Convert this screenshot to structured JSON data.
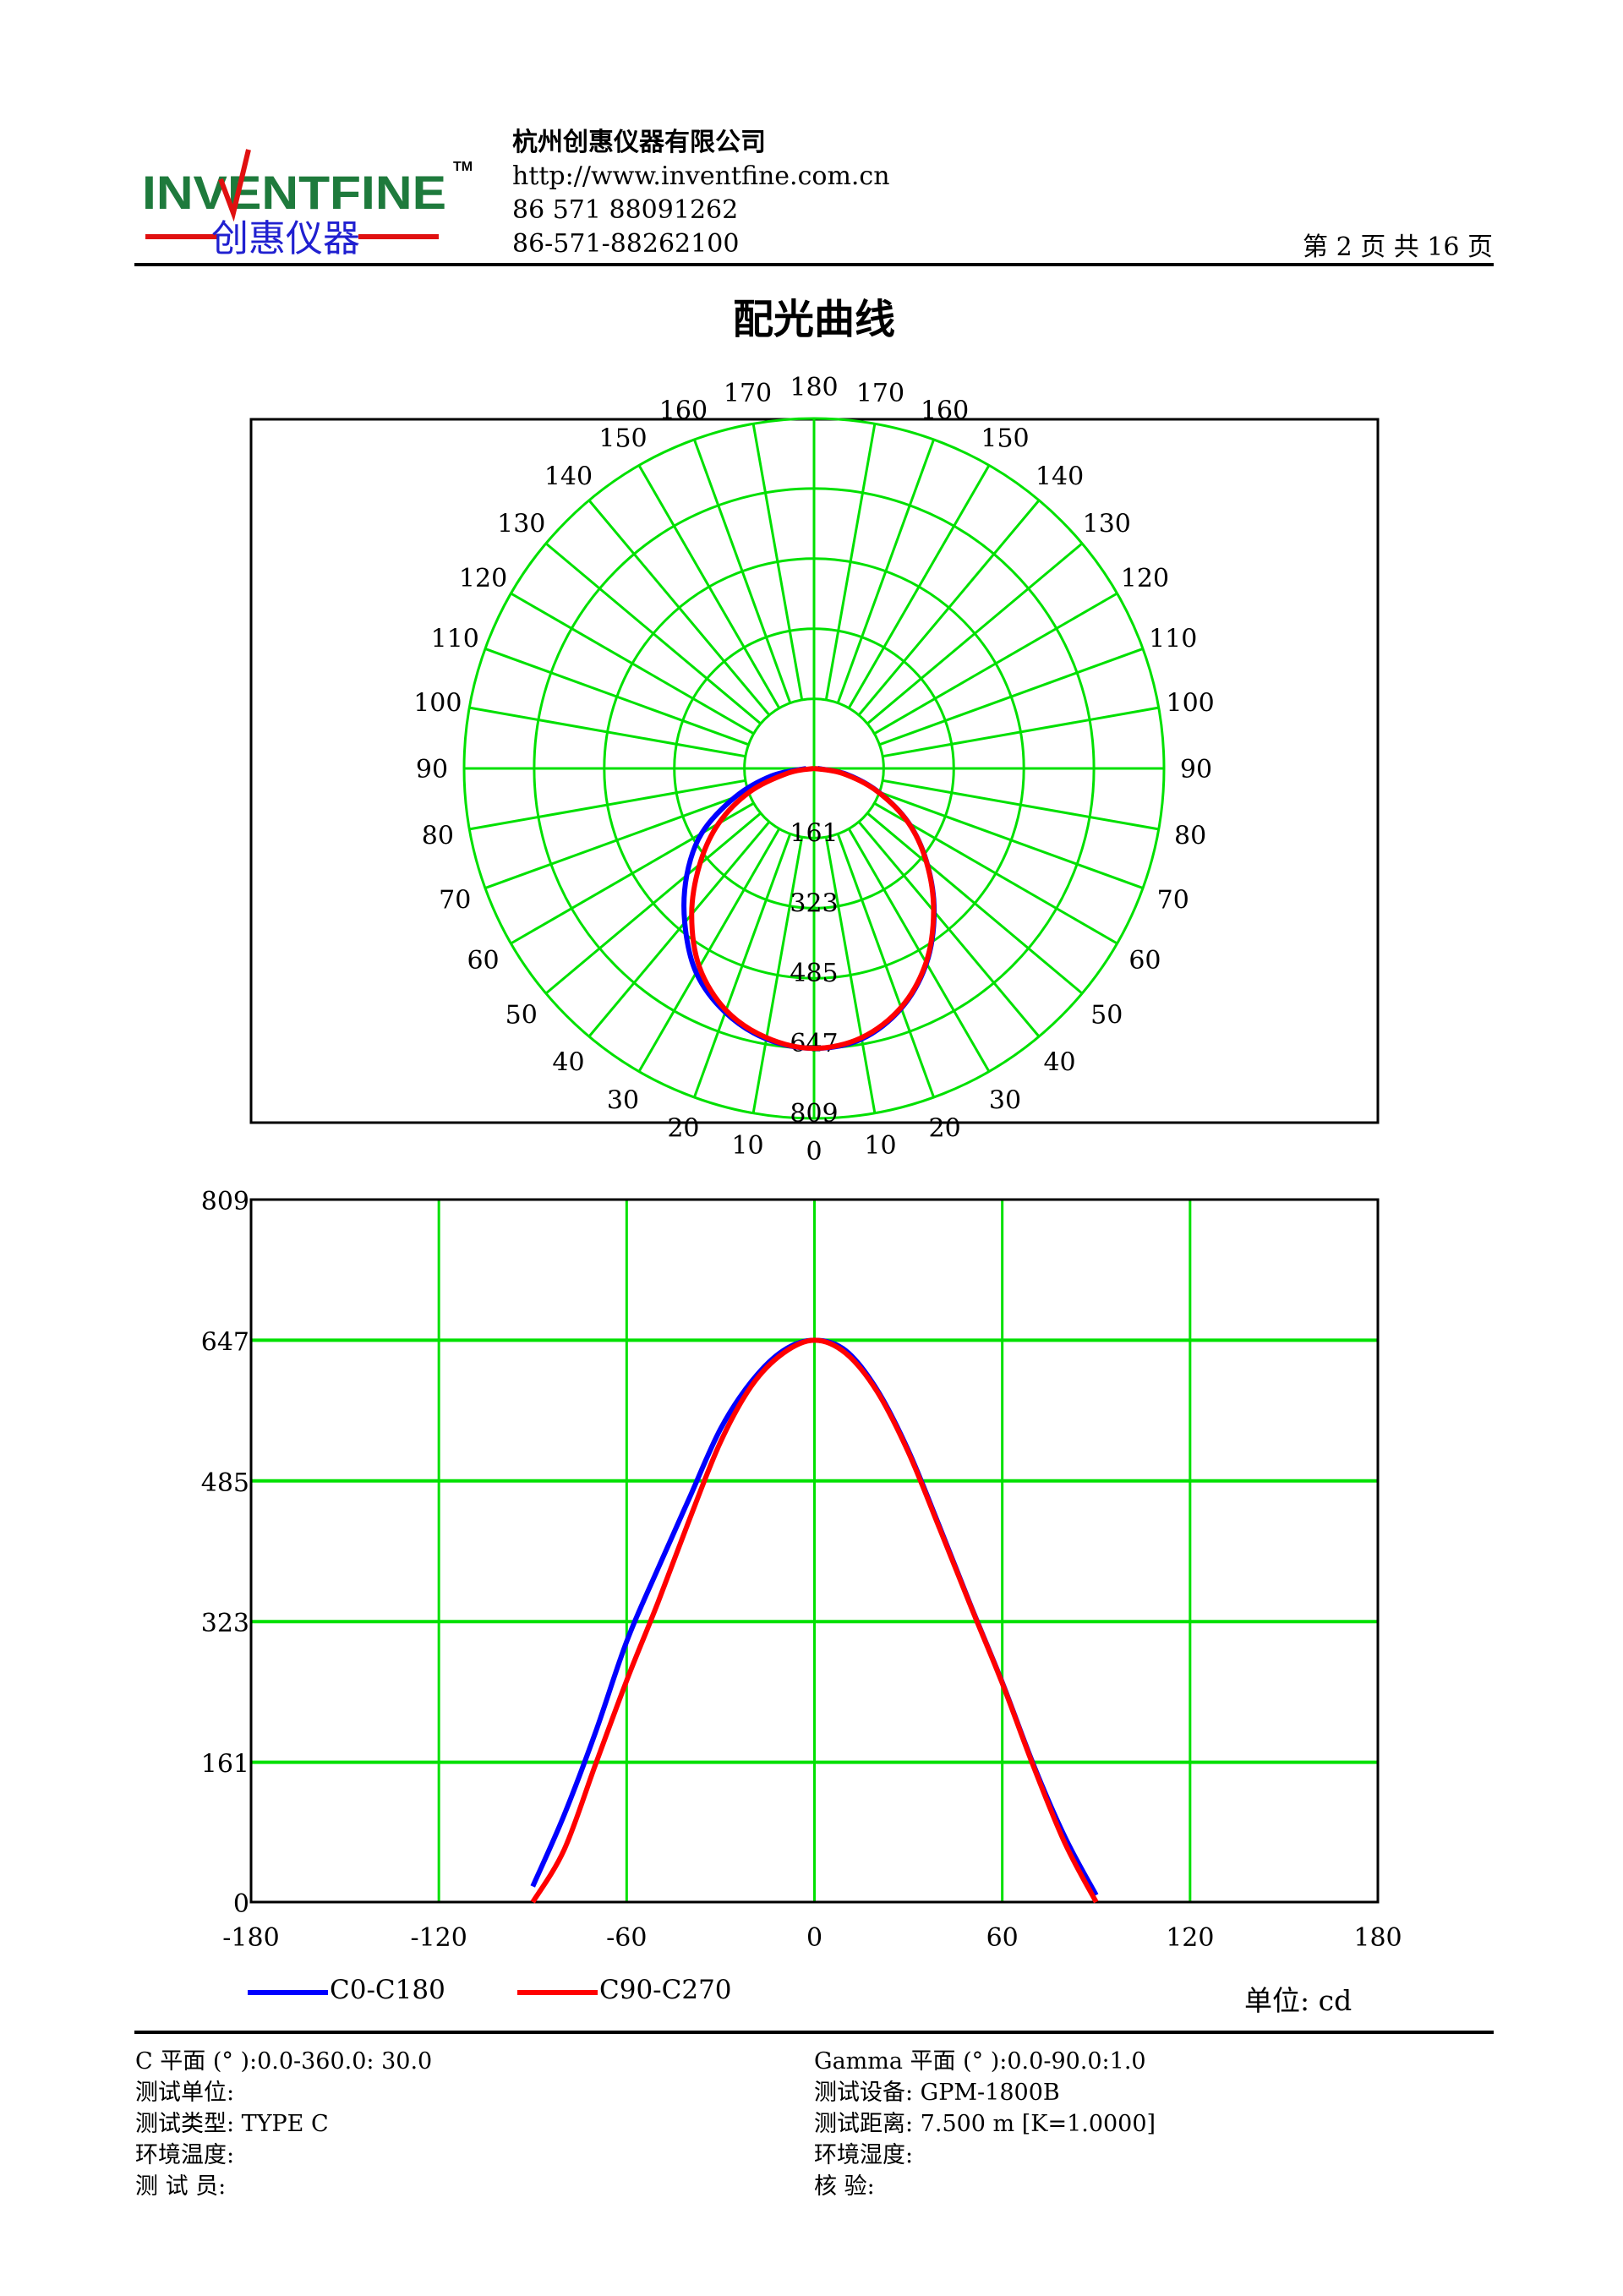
{
  "header": {
    "logo_text": "INVENTFINE",
    "logo_tm": "TM",
    "logo_cn": "创惠仪器",
    "company": "杭州创惠仪器有限公司",
    "website": "http://www.inventfine.com.cn",
    "phone1": "86 571 88091262",
    "phone2": "86-571-88262100",
    "page_info": "第 2 页  共 16 页"
  },
  "title": "配光曲线",
  "colors": {
    "grid": "#00e000",
    "c0_c180": "#0000ff",
    "c90_c270": "#ff0000",
    "logo_green": "#1e7a3c",
    "logo_red": "#e01010",
    "logo_blue": "#2020d0"
  },
  "chart_data": [
    {
      "type": "polar",
      "radial_ticks": [
        "161",
        "323",
        "485",
        "647",
        "809"
      ],
      "radial_max": 809,
      "angle_ticks": [
        0,
        10,
        20,
        30,
        40,
        50,
        60,
        70,
        80,
        90,
        100,
        110,
        120,
        130,
        140,
        150,
        160,
        170,
        180
      ],
      "grid": true,
      "series": [
        {
          "name": "C0-C180",
          "angles": [
            -90,
            -80,
            -70,
            -60,
            -50,
            -40,
            -30,
            -20,
            -10,
            0,
            10,
            20,
            30,
            40,
            50,
            60,
            70,
            80,
            90
          ],
          "values": [
            18,
            100,
            195,
            300,
            384,
            465,
            545,
            600,
            635,
            647,
            635,
            590,
            520,
            432,
            341,
            253,
            158,
            75,
            8
          ]
        },
        {
          "name": "C90-C270",
          "angles": [
            -90,
            -80,
            -70,
            -60,
            -50,
            -40,
            -30,
            -20,
            -10,
            0,
            10,
            20,
            30,
            40,
            50,
            60,
            70,
            80,
            90
          ],
          "values": [
            0,
            60,
            158,
            255,
            345,
            440,
            530,
            595,
            632,
            647,
            632,
            588,
            518,
            430,
            340,
            252,
            156,
            68,
            0
          ]
        }
      ]
    },
    {
      "type": "line",
      "x_ticks": [
        "-180",
        "-120",
        "-60",
        "0",
        "60",
        "120",
        "180"
      ],
      "y_ticks": [
        "0",
        "161",
        "323",
        "485",
        "647",
        "809"
      ],
      "xlim": [
        -180,
        180
      ],
      "ylim": [
        0,
        809
      ],
      "grid": true,
      "legend": "bottom-left",
      "series_ref": "polar series (same data)"
    }
  ],
  "legend": {
    "c0": "C0-C180",
    "c90": "C90-C270"
  },
  "unit": "单位: cd",
  "info": {
    "left": [
      "C 平面 (° ):0.0-360.0: 30.0",
      "测试单位:",
      "测试类型: TYPE C",
      "环境温度:",
      "测 试 员:"
    ],
    "right": [
      "Gamma 平面 (° ):0.0-90.0:1.0",
      "测试设备: GPM-1800B",
      "测试距离: 7.500 m [K=1.0000]",
      "环境湿度:",
      "核    验:"
    ]
  }
}
